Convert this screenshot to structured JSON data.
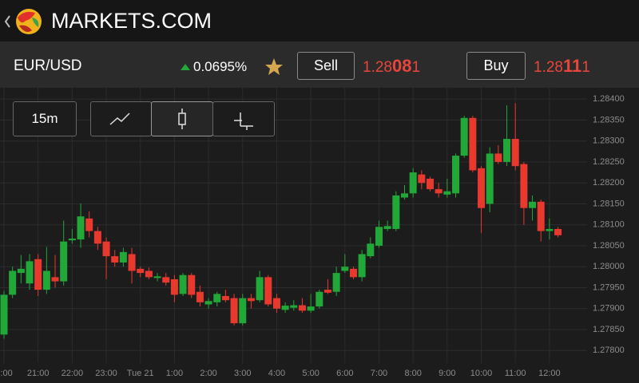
{
  "header": {
    "title": "MARKETS.COM"
  },
  "instrument": {
    "symbol": "EUR/USD",
    "change": "0.0695%",
    "sell_label": "Sell",
    "sell_price": [
      "1.28",
      "08",
      "1"
    ],
    "buy_label": "Buy",
    "buy_price": [
      "1.28",
      "11",
      "1"
    ]
  },
  "toolbar": {
    "interval": "15m"
  },
  "chart_data": {
    "type": "candlestick",
    "up_color": "#22a838",
    "down_color": "#e8392f",
    "grid": true,
    "ylim": [
      1.2777,
      1.28427
    ],
    "yticks": [
      {
        "value": 1.284,
        "label": "1.28400"
      },
      {
        "value": 1.2835,
        "label": "1.28350"
      },
      {
        "value": 1.283,
        "label": "1.28300"
      },
      {
        "value": 1.2825,
        "label": "1.28250"
      },
      {
        "value": 1.282,
        "label": "1.28200"
      },
      {
        "value": 1.2815,
        "label": "1.28150"
      },
      {
        "value": 1.281,
        "label": "1.28100"
      },
      {
        "value": 1.2805,
        "label": "1.28050"
      },
      {
        "value": 1.28,
        "label": "1.28000"
      },
      {
        "value": 1.2795,
        "label": "1.27950"
      },
      {
        "value": 1.279,
        "label": "1.27900"
      },
      {
        "value": 1.2785,
        "label": "1.27850"
      },
      {
        "value": 1.278,
        "label": "1.27800"
      }
    ],
    "categories": [
      "0:00",
      null,
      null,
      null,
      "21:00",
      null,
      null,
      null,
      "22:00",
      null,
      null,
      null,
      "23:00",
      null,
      null,
      null,
      "Tue 21",
      null,
      null,
      null,
      "1:00",
      null,
      null,
      null,
      "2:00",
      null,
      null,
      null,
      "3:00",
      null,
      null,
      null,
      "4:00",
      null,
      null,
      null,
      "5:00",
      null,
      null,
      null,
      "6:00",
      null,
      null,
      null,
      "7:00",
      null,
      null,
      null,
      "8:00",
      null,
      null,
      null,
      "9:00",
      null,
      null,
      null,
      "10:00",
      null,
      null,
      null,
      "11:00",
      null,
      null,
      null,
      "12:00",
      null
    ],
    "open": [
      1.27838,
      1.27933,
      1.27985,
      1.2796,
      1.28018,
      1.27945,
      1.27975,
      1.27965,
      1.28063,
      1.28065,
      1.28115,
      1.28085,
      1.2806,
      1.28025,
      1.2801,
      1.2803,
      1.27995,
      1.2799,
      1.27973,
      1.27975,
      1.2797,
      1.27935,
      1.2798,
      1.2794,
      1.2791,
      1.27915,
      1.2793,
      1.27925,
      1.27865,
      1.27925,
      1.2792,
      1.27975,
      1.27925,
      1.27897,
      1.27902,
      1.27908,
      1.27895,
      1.27905,
      1.27945,
      1.2794,
      1.2799,
      1.27995,
      1.27975,
      1.28025,
      1.2805,
      1.2809,
      1.2809,
      1.28165,
      1.28175,
      1.2822,
      1.2821,
      1.28185,
      1.28172,
      1.28175,
      1.28265,
      1.28355,
      1.28235,
      1.2815,
      1.2827,
      1.2825,
      1.28305,
      1.28245,
      1.2814,
      1.28155,
      1.28085,
      1.2809
    ],
    "high": [
      1.27942,
      1.28,
      1.28028,
      1.2803,
      1.2803,
      1.28047,
      1.28028,
      1.2811,
      1.2809,
      1.28151,
      1.28132,
      1.28095,
      1.2807,
      1.2804,
      1.28045,
      1.28045,
      1.28,
      1.27998,
      1.27985,
      1.27985,
      1.2798,
      1.27985,
      1.27985,
      1.27955,
      1.27925,
      1.2794,
      1.27945,
      1.27935,
      1.27935,
      1.27935,
      1.2799,
      1.2798,
      1.27935,
      1.27915,
      1.2792,
      1.27925,
      1.27935,
      1.27945,
      1.2797,
      1.28,
      1.2803,
      1.28,
      1.2804,
      1.2807,
      1.2811,
      1.2811,
      1.2818,
      1.28195,
      1.28235,
      1.2823,
      1.28215,
      1.282,
      1.2821,
      1.2827,
      1.2836,
      1.2836,
      1.2824,
      1.28285,
      1.2829,
      1.28385,
      1.2839,
      1.2825,
      1.2817,
      1.2816,
      1.28115,
      1.28095
    ],
    "low": [
      1.27828,
      1.27925,
      1.2796,
      1.27945,
      1.2793,
      1.27935,
      1.2795,
      1.27955,
      1.28055,
      1.28045,
      1.2807,
      1.2804,
      1.2797,
      1.28,
      1.28,
      1.2796,
      1.27975,
      1.2797,
      1.27965,
      1.27955,
      1.27915,
      1.2793,
      1.27925,
      1.27905,
      1.279,
      1.27905,
      1.27915,
      1.2786,
      1.2786,
      1.279,
      1.27915,
      1.27905,
      1.2789,
      1.2789,
      1.27895,
      1.2789,
      1.2789,
      1.279,
      1.27935,
      1.2793,
      1.27985,
      1.2797,
      1.27965,
      1.2802,
      1.28045,
      1.28085,
      1.28085,
      1.2816,
      1.28165,
      1.28185,
      1.2818,
      1.28165,
      1.28165,
      1.28165,
      1.2826,
      1.28225,
      1.2808,
      1.2813,
      1.28245,
      1.2824,
      1.2823,
      1.281,
      1.2811,
      1.2806,
      1.28065,
      1.2807
    ],
    "close": [
      1.27933,
      1.2799,
      1.27995,
      1.28013,
      1.27945,
      1.2799,
      1.27965,
      1.2806,
      1.28067,
      1.2812,
      1.28085,
      1.28055,
      1.28025,
      1.2801,
      1.28035,
      1.2799,
      1.27985,
      1.27975,
      1.27977,
      1.27962,
      1.27933,
      1.2798,
      1.27933,
      1.27915,
      1.27918,
      1.27935,
      1.2792,
      1.27865,
      1.27925,
      1.27918,
      1.27975,
      1.2791,
      1.279,
      1.27907,
      1.27908,
      1.27895,
      1.27905,
      1.2794,
      1.27938,
      1.27985,
      1.28,
      1.27975,
      1.2803,
      1.28055,
      1.28095,
      1.28097,
      1.2817,
      1.28175,
      1.28225,
      1.282,
      1.28185,
      1.28175,
      1.2818,
      1.28265,
      1.28355,
      1.2823,
      1.2814,
      1.2827,
      1.2825,
      1.28305,
      1.2824,
      1.2814,
      1.28155,
      1.28085,
      1.2809,
      1.28075
    ]
  }
}
